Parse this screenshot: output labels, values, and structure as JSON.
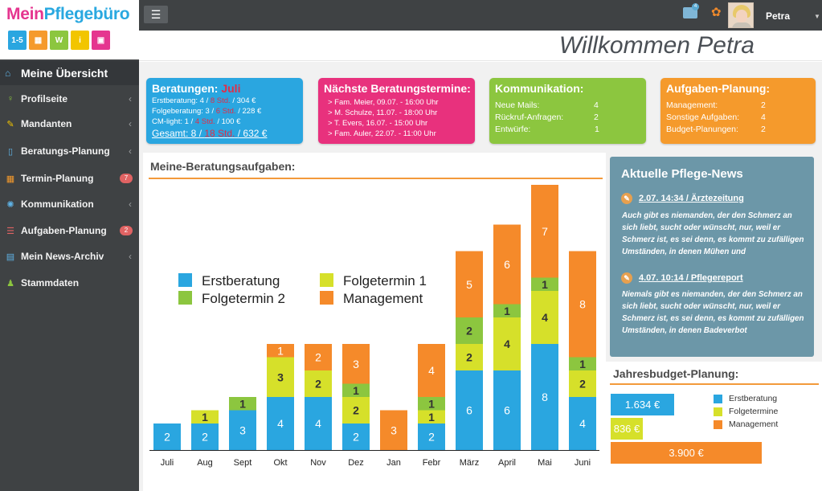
{
  "logo": {
    "part1": "Mein",
    "part2": "Pflegebüro",
    "tiles": [
      {
        "label": "1-5",
        "color": "#2aa6e0"
      },
      {
        "label": "▦",
        "color": "#f59a2c"
      },
      {
        "label": "W",
        "color": "#8cc63f"
      },
      {
        "label": "i",
        "color": "#f2c500"
      },
      {
        "label": "▣",
        "color": "#e5358f"
      }
    ]
  },
  "sidebar": {
    "home": {
      "label": "Meine Übersicht",
      "icon": "home-icon"
    },
    "items": [
      {
        "label": "Profilseite",
        "icon": "badge-icon",
        "glyph": "♀",
        "color": "#8cc63f",
        "chevron": "‹"
      },
      {
        "label": "Mandanten",
        "icon": "wrench-icon",
        "glyph": "✎",
        "color": "#f2c500",
        "chevron": "‹"
      },
      {
        "label": "Beratungs-Planung",
        "icon": "document-icon",
        "glyph": "▯",
        "color": "#5fb3e6",
        "chevron": "‹"
      },
      {
        "label": "Termin-Planung",
        "icon": "calendar-icon",
        "glyph": "▦",
        "color": "#f59a2c",
        "badge": "7"
      },
      {
        "label": "Kommunikation",
        "icon": "globe-icon",
        "glyph": "✺",
        "color": "#5fb3e6",
        "chevron": "‹"
      },
      {
        "label": "Aufgaben-Planung",
        "icon": "list-icon",
        "glyph": "☰",
        "color": "#e06363",
        "badge": "2"
      },
      {
        "label": "Mein News-Archiv",
        "icon": "newspaper-icon",
        "glyph": "▤",
        "color": "#5fb3e6",
        "chevron": "‹"
      },
      {
        "label": "Stammdaten",
        "icon": "user-icon",
        "glyph": "♟",
        "color": "#8cc63f",
        "chevron": ""
      }
    ]
  },
  "topbar": {
    "menu_glyph": "☰",
    "mail_count": "4",
    "user_name": "Petra",
    "caret": "▼"
  },
  "header": {
    "welcome": "Willkommen Petra"
  },
  "stats": {
    "beratungen": {
      "title_prefix": "Beratungen: ",
      "title_month": "Juli",
      "lines": [
        {
          "a": "Erstberatung: 4 / ",
          "h": "8 Std.",
          "b": " / 304 €"
        },
        {
          "a": "Folgeberatung: 3 / ",
          "h": "6 Std.",
          "b": " / 228 €"
        },
        {
          "a": "CM-light: 1 / ",
          "h": "4 Std.",
          "b": " / 100 €"
        }
      ],
      "total_a": "Gesamt: 8 / ",
      "total_h": "18 Std.",
      "total_b": " / 632 €",
      "color": "#2aa6e0"
    },
    "termine": {
      "title": "Nächste Beratungstermine:",
      "lines": [
        "> Fam. Meier, 09.07. - 16:00 Uhr",
        "> M. Schulze, 11.07. - 18:00 Uhr",
        "> T. Evers, 16.07. - 15:00 Uhr",
        "> Fam. Auler, 22.07. - 11:00 Uhr"
      ],
      "color": "#e8317d"
    },
    "kommunikation": {
      "title": "Kommunikation:",
      "rows": [
        {
          "label": "Neue Mails:",
          "value": "4"
        },
        {
          "label": "Rückruf-Anfragen:",
          "value": "2"
        },
        {
          "label": "Entwürfe:",
          "value": "1"
        }
      ],
      "color": "#8cc63f"
    },
    "aufgaben": {
      "title": "Aufgaben-Planung:",
      "rows": [
        {
          "label": "Management:",
          "value": "2"
        },
        {
          "label": "Sonstige Aufgaben:",
          "value": "4"
        },
        {
          "label": "Budget-Planungen:",
          "value": "2"
        }
      ],
      "color": "#f59a2c"
    }
  },
  "chart_data": {
    "type": "bar",
    "stacked": true,
    "title": "Meine-Beratungsaufgaben:",
    "categories": [
      "Juli",
      "Aug",
      "Sept",
      "Okt",
      "Nov",
      "Dez",
      "Jan",
      "Febr",
      "März",
      "April",
      "Mai",
      "Juni"
    ],
    "series": [
      {
        "name": "Erstberatung",
        "color": "#2aa6e0",
        "values": [
          2,
          2,
          3,
          4,
          4,
          2,
          0,
          2,
          6,
          6,
          8,
          4
        ]
      },
      {
        "name": "Folgetermin 1",
        "color": "#d6e02a",
        "values": [
          0,
          1,
          0,
          3,
          2,
          2,
          0,
          1,
          2,
          4,
          4,
          2
        ]
      },
      {
        "name": "Folgetermin 2",
        "color": "#8cc63f",
        "values": [
          0,
          0,
          1,
          0,
          0,
          1,
          0,
          1,
          2,
          1,
          1,
          1
        ]
      },
      {
        "name": "Management",
        "color": "#f58a2a",
        "values": [
          0,
          0,
          0,
          1,
          2,
          3,
          3,
          4,
          5,
          6,
          7,
          8
        ]
      }
    ],
    "ylim": [
      0,
      20
    ],
    "grid": false,
    "legend_placement": "top-left"
  },
  "news": {
    "title": "Aktuelle Pflege-News",
    "items": [
      {
        "date": "2.07. 14:34 / Ärztezeitung",
        "text": "Auch gibt es niemanden, der den Schmerz an sich liebt, sucht oder wünscht, nur, weil er Schmerz ist, es sei denn, es kommt zu zufälligen Umständen, in denen Mühen und"
      },
      {
        "date": "4.07. 10:14 / Pflegereport",
        "text": "Niemals gibt es niemanden, der den Schmerz an sich liebt, sucht oder wünscht, nur, weil er Schmerz ist, es sei denn, es kommt zu zufälligen Umständen, in denen Badeverbot"
      }
    ]
  },
  "budget": {
    "title": "Jahresbudget-Planung:",
    "bars": [
      {
        "name": "Erstberatung",
        "label": "1.634 €",
        "value": 1634,
        "color": "#2aa6e0"
      },
      {
        "name": "Folgetermine",
        "label": "836 €",
        "value": 836,
        "color": "#d6e02a"
      },
      {
        "name": "Management",
        "label": "3.900 €",
        "value": 3900,
        "color": "#f58a2a"
      }
    ]
  }
}
